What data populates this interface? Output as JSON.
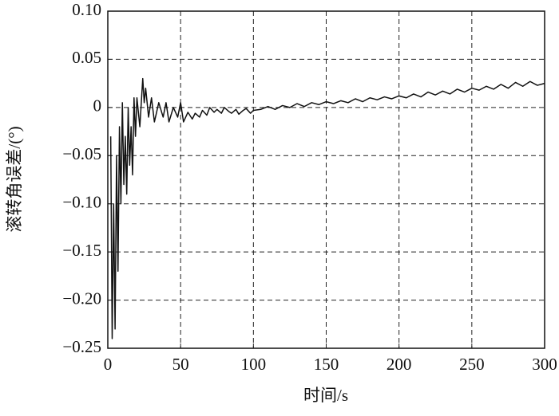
{
  "chart_data": {
    "type": "line",
    "xlabel": "时间/s",
    "ylabel": "滚转角误差/(°)",
    "xlim": [
      0,
      300
    ],
    "xticks": [
      0,
      50,
      100,
      150,
      200,
      250,
      300
    ],
    "ylim": [
      -0.25,
      0.1
    ],
    "yticks": [
      {
        "value": -0.25,
        "label": "−0.25"
      },
      {
        "value": -0.2,
        "label": "−0.20"
      },
      {
        "value": -0.15,
        "label": "−0.15"
      },
      {
        "value": -0.1,
        "label": "−0.10"
      },
      {
        "value": -0.05,
        "label": "−0.05"
      },
      0,
      0.05,
      {
        "value": 0.1,
        "label": "0.10"
      }
    ],
    "grid": true,
    "series": [
      {
        "color": "#111111",
        "x": [
          2,
          3,
          4,
          5,
          6,
          7,
          8,
          9,
          10,
          11,
          12,
          13,
          14,
          15,
          16,
          17,
          18,
          19,
          20,
          22,
          24,
          25,
          26,
          28,
          30,
          32,
          35,
          38,
          40,
          42,
          45,
          48,
          50,
          52,
          55,
          58,
          60,
          63,
          65,
          68,
          70,
          73,
          75,
          78,
          80,
          83,
          85,
          88,
          90,
          93,
          95,
          98,
          100,
          105,
          110,
          115,
          120,
          125,
          130,
          135,
          140,
          145,
          150,
          155,
          160,
          165,
          170,
          175,
          180,
          185,
          190,
          195,
          200,
          205,
          210,
          215,
          220,
          225,
          230,
          235,
          240,
          245,
          250,
          255,
          260,
          265,
          270,
          275,
          280,
          285,
          290,
          295,
          300
        ],
        "values": [
          -0.03,
          -0.24,
          -0.1,
          -0.23,
          -0.05,
          -0.17,
          -0.02,
          -0.1,
          0.005,
          -0.08,
          -0.03,
          -0.09,
          0,
          -0.06,
          -0.02,
          -0.07,
          0.01,
          -0.03,
          0.01,
          -0.02,
          0.03,
          0.005,
          0.02,
          -0.01,
          0.01,
          -0.015,
          0.005,
          -0.01,
          0.005,
          -0.015,
          0,
          -0.01,
          0.005,
          -0.015,
          -0.005,
          -0.012,
          -0.006,
          -0.01,
          -0.003,
          -0.008,
          0,
          -0.005,
          -0.002,
          -0.006,
          0,
          -0.004,
          -0.006,
          -0.002,
          -0.007,
          -0.003,
          -0.001,
          -0.006,
          -0.003,
          -0.002,
          0.001,
          -0.002,
          0.002,
          0,
          0.004,
          0.001,
          0.005,
          0.003,
          0.006,
          0.004,
          0.007,
          0.005,
          0.009,
          0.006,
          0.01,
          0.008,
          0.011,
          0.009,
          0.012,
          0.01,
          0.014,
          0.011,
          0.016,
          0.013,
          0.017,
          0.014,
          0.019,
          0.016,
          0.02,
          0.018,
          0.022,
          0.019,
          0.024,
          0.02,
          0.026,
          0.022,
          0.027,
          0.023,
          0.025
        ]
      }
    ]
  }
}
